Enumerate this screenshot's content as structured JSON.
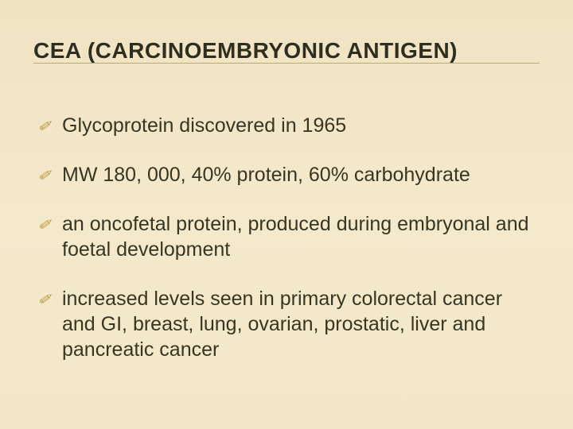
{
  "slide": {
    "title": "CEA (CARCINOEMBRYONIC ANTIGEN)",
    "background_color": "#f3e7c9",
    "title_color": "#2e2e20",
    "title_fontsize": 28,
    "title_line_color": "#b6aa7a",
    "bullet_glyph": "✐",
    "bullet_color": "#b99a3d",
    "body_fontsize": 25,
    "body_color": "#363622",
    "bullets": [
      "Glycoprotein discovered in 1965",
      "MW 180, 000, 40% protein, 60% carbohydrate",
      "an oncofetal protein, produced during embryonal and foetal development",
      "increased levels seen in primary colorectal cancer and GI, breast, lung, ovarian, prostatic, liver and pancreatic cancer"
    ]
  }
}
